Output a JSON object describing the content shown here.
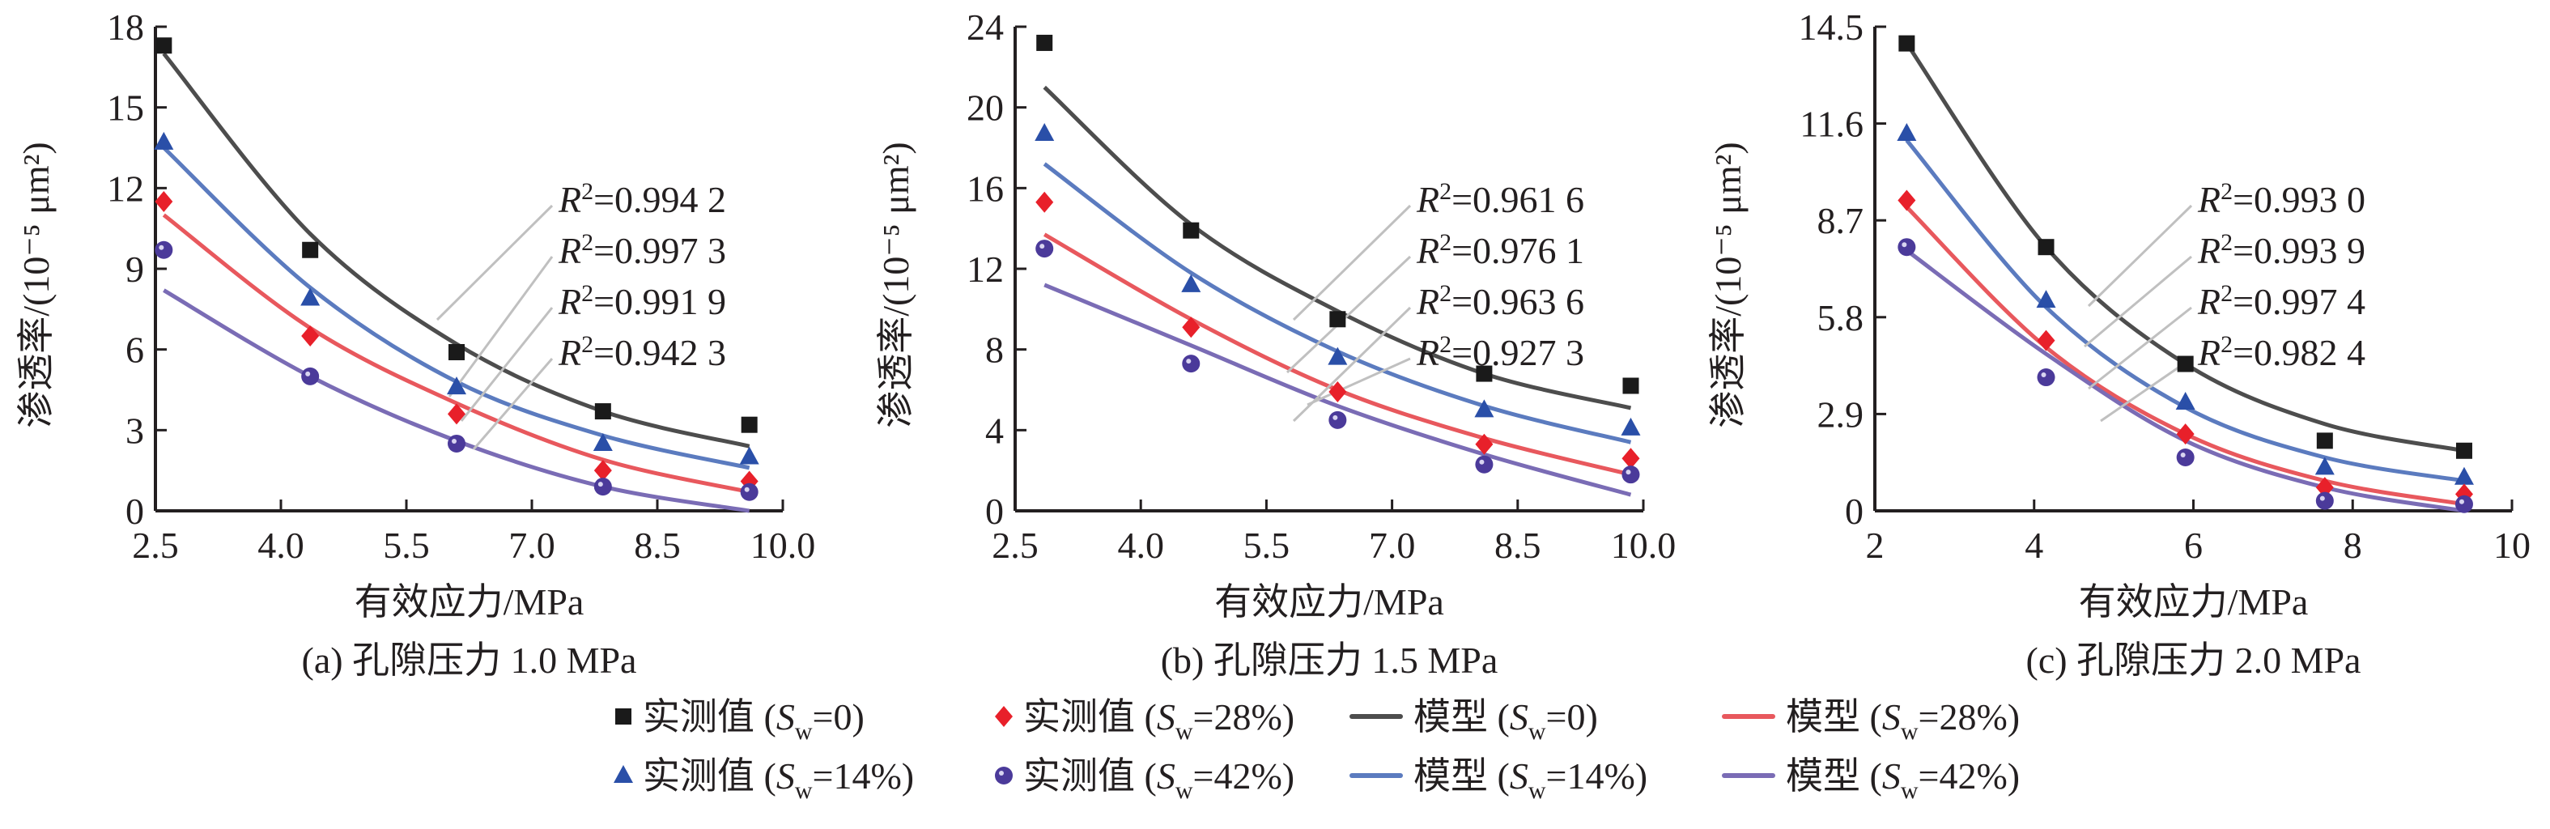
{
  "chart_data": [
    {
      "id": "a",
      "type": "scatter",
      "title": "(a) 孔隙压力 1.0 MPa",
      "xlabel": "有效应力/MPa",
      "ylabel": "渗透率/(10⁻⁵ μm²)",
      "xlim": [
        2.5,
        10.0
      ],
      "ylim": [
        0,
        18
      ],
      "xticks": [
        2.5,
        4.0,
        5.5,
        7.0,
        8.5,
        10.0
      ],
      "xtick_labels": [
        "2.5",
        "4.0",
        "5.5",
        "7.0",
        "8.5",
        "10.0"
      ],
      "yticks": [
        0,
        3,
        6,
        9,
        12,
        15,
        18
      ],
      "ytick_labels": [
        "0",
        "3",
        "6",
        "9",
        "12",
        "15",
        "18"
      ],
      "x": [
        2.6,
        4.35,
        6.1,
        7.85,
        9.6
      ],
      "series": [
        {
          "name": "Sw=0",
          "measured": [
            17.3,
            9.7,
            5.9,
            3.7,
            3.2
          ],
          "model": [
            17.0,
            10.3,
            6.2,
            3.7,
            2.4
          ]
        },
        {
          "name": "Sw=14%",
          "measured": [
            13.7,
            7.9,
            4.6,
            2.5,
            2.0
          ],
          "model": [
            13.5,
            8.3,
            4.8,
            2.8,
            1.6
          ]
        },
        {
          "name": "Sw=28%",
          "measured": [
            11.5,
            6.5,
            3.6,
            1.5,
            1.1
          ],
          "model": [
            11.0,
            6.8,
            4.0,
            1.9,
            0.7
          ]
        },
        {
          "name": "Sw=42%",
          "measured": [
            9.7,
            5.0,
            2.5,
            0.9,
            0.7
          ],
          "model": [
            8.2,
            5.0,
            2.6,
            0.9,
            0.0
          ]
        }
      ],
      "r2_labels": [
        "0.994 2",
        "0.997 3",
        "0.991 9",
        "0.942 3"
      ]
    },
    {
      "id": "b",
      "type": "scatter",
      "title": "(b) 孔隙压力 1.5 MPa",
      "xlabel": "有效应力/MPa",
      "ylabel": "渗透率/(10⁻⁵ μm²)",
      "xlim": [
        2.5,
        10.0
      ],
      "ylim": [
        0,
        24
      ],
      "xticks": [
        2.5,
        4.0,
        5.5,
        7.0,
        8.5,
        10.0
      ],
      "xtick_labels": [
        "2.5",
        "4.0",
        "5.5",
        "7.0",
        "8.5",
        "10.0"
      ],
      "yticks": [
        0,
        4,
        8,
        12,
        16,
        20,
        24
      ],
      "ytick_labels": [
        "0",
        "4",
        "8",
        "12",
        "16",
        "20",
        "24"
      ],
      "x": [
        2.85,
        4.6,
        6.35,
        8.1,
        9.85
      ],
      "series": [
        {
          "name": "Sw=0",
          "measured": [
            23.2,
            13.9,
            9.5,
            6.8,
            6.2
          ],
          "model": [
            21.0,
            14.2,
            9.9,
            6.8,
            5.1
          ]
        },
        {
          "name": "Sw=14%",
          "measured": [
            18.7,
            11.2,
            7.6,
            5.0,
            4.1
          ],
          "model": [
            17.2,
            11.8,
            7.9,
            5.2,
            3.4
          ]
        },
        {
          "name": "Sw=28%",
          "measured": [
            15.3,
            9.1,
            5.9,
            3.3,
            2.6
          ],
          "model": [
            13.7,
            9.5,
            6.0,
            3.6,
            1.8
          ]
        },
        {
          "name": "Sw=42%",
          "measured": [
            13.0,
            7.3,
            4.5,
            2.3,
            1.8
          ],
          "model": [
            11.2,
            8.2,
            5.2,
            2.8,
            0.8
          ]
        }
      ],
      "r2_labels": [
        "0.961 6",
        "0.976 1",
        "0.963 6",
        "0.927 3"
      ]
    },
    {
      "id": "c",
      "type": "scatter",
      "title": "(c) 孔隙压力 2.0 MPa",
      "xlabel": "有效应力/MPa",
      "ylabel": "渗透率/(10⁻⁵ μm²)",
      "xlim": [
        2,
        10
      ],
      "ylim": [
        0,
        14.5
      ],
      "xticks": [
        2,
        4,
        6,
        8,
        10
      ],
      "xtick_labels": [
        "2",
        "4",
        "6",
        "8",
        "10"
      ],
      "yticks": [
        0,
        2.9,
        5.8,
        8.7,
        11.6,
        14.5
      ],
      "ytick_labels": [
        "0",
        "2.9",
        "5.8",
        "8.7",
        "11.6",
        "14.5"
      ],
      "x": [
        2.4,
        4.15,
        5.9,
        7.65,
        9.4
      ],
      "series": [
        {
          "name": "Sw=0",
          "measured": [
            14.0,
            7.9,
            4.4,
            2.1,
            1.8
          ],
          "model": [
            14.0,
            7.9,
            4.4,
            2.6,
            1.8
          ]
        },
        {
          "name": "Sw=14%",
          "measured": [
            11.3,
            6.3,
            3.25,
            1.3,
            1.0
          ],
          "model": [
            11.1,
            6.1,
            3.1,
            1.6,
            0.9
          ]
        },
        {
          "name": "Sw=28%",
          "measured": [
            9.3,
            5.1,
            2.3,
            0.7,
            0.5
          ],
          "model": [
            9.1,
            4.9,
            2.3,
            0.9,
            0.2
          ]
        },
        {
          "name": "Sw=42%",
          "measured": [
            7.9,
            4.0,
            1.6,
            0.3,
            0.2
          ],
          "model": [
            7.8,
            4.7,
            2.1,
            0.7,
            0.0
          ]
        }
      ],
      "r2_labels": [
        "0.993 0",
        "0.993 9",
        "0.997 4",
        "0.982 4"
      ]
    }
  ],
  "series_styles": [
    {
      "marker": "square",
      "marker_color": "#1a1a1a",
      "line_color": "#4d4d4d"
    },
    {
      "marker": "triangle",
      "marker_color": "#2a4fa8",
      "line_color": "#5b7bbf"
    },
    {
      "marker": "diamond",
      "marker_color": "#e8202a",
      "line_color": "#e8585d"
    },
    {
      "marker": "circle",
      "marker_color": "#4b3a9a",
      "line_color": "#7a6cb5"
    }
  ],
  "annotation_line_color": "#c0c0c0",
  "r2_prefix": "R",
  "r2_sup": "2",
  "legend": {
    "rows": [
      [
        {
          "kind": "marker",
          "series": 0,
          "label": "实测值 (",
          "sub_label": "w",
          "suffix": "=0)"
        },
        {
          "kind": "marker",
          "series": 2,
          "label": "实测值 (",
          "sub_label": "w",
          "suffix": "=28%)"
        },
        {
          "kind": "line",
          "series": 0,
          "label": "模型 (",
          "sub_label": "w",
          "suffix": "=0)"
        },
        {
          "kind": "line",
          "series": 2,
          "label": "模型 (",
          "sub_label": "w",
          "suffix": "=28%)"
        }
      ],
      [
        {
          "kind": "marker",
          "series": 1,
          "label": "实测值 (",
          "sub_label": "w",
          "suffix": "=14%)"
        },
        {
          "kind": "marker",
          "series": 3,
          "label": "实测值 (",
          "sub_label": "w",
          "suffix": "=42%)"
        },
        {
          "kind": "line",
          "series": 1,
          "label": "模型 (",
          "sub_label": "w",
          "suffix": "=14%)"
        },
        {
          "kind": "line",
          "series": 3,
          "label": "模型 (",
          "sub_label": "w",
          "suffix": "=42%)"
        }
      ]
    ],
    "var_symbol": "S"
  }
}
